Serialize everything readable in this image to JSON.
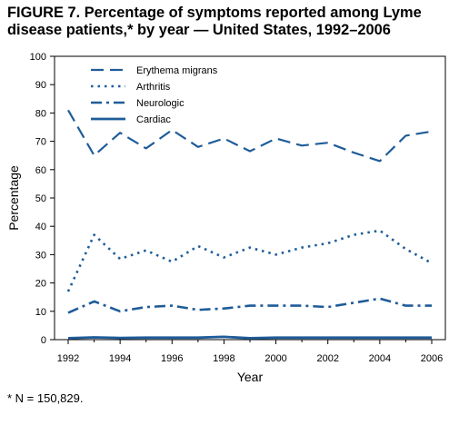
{
  "figure": {
    "title": "FIGURE 7. Percentage of symptoms reported among Lyme disease patients,* by year — United States, 1992–2006",
    "footnote": "* N = 150,829."
  },
  "colors": {
    "series": "#1f5c99",
    "axis": "#000000"
  },
  "chart_data": {
    "type": "line",
    "title": "",
    "xlabel": "Year",
    "ylabel": "Percentage",
    "ylim": [
      0,
      100
    ],
    "xlim": [
      1992,
      2006
    ],
    "yticks": [
      0,
      10,
      20,
      30,
      40,
      50,
      60,
      70,
      80,
      90,
      100
    ],
    "xticks": [
      1992,
      1994,
      1996,
      1998,
      2000,
      2002,
      2004,
      2006
    ],
    "grid": false,
    "legend_position": "top-left",
    "x": [
      1992,
      1993,
      1994,
      1995,
      1996,
      1997,
      1998,
      1999,
      2000,
      2001,
      2002,
      2003,
      2004,
      2005,
      2006
    ],
    "series": [
      {
        "name": "Erythema migrans",
        "style": "long-dash",
        "values": [
          81,
          65,
          73,
          67.5,
          74,
          68,
          71,
          66.5,
          71,
          68.5,
          69.5,
          66,
          63,
          72,
          73.5
        ]
      },
      {
        "name": "Arthritis",
        "style": "dotted",
        "values": [
          17,
          37,
          28.5,
          31.5,
          27.5,
          33,
          29,
          32.5,
          30,
          32.5,
          34,
          37,
          38.5,
          32,
          27
        ]
      },
      {
        "name": "Neurologic",
        "style": "dash-dot",
        "values": [
          9.5,
          13.5,
          10,
          11.5,
          12,
          10.5,
          11,
          12,
          12,
          12,
          11.5,
          13,
          14.5,
          12,
          12
        ]
      },
      {
        "name": "Cardiac",
        "style": "solid",
        "values": [
          0.5,
          0.8,
          0.6,
          0.7,
          0.7,
          0.7,
          1.0,
          0.5,
          0.7,
          0.7,
          0.7,
          0.7,
          0.7,
          0.7,
          0.7
        ]
      }
    ]
  }
}
